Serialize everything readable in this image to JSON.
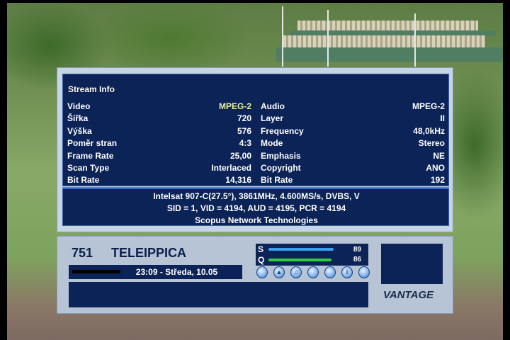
{
  "stream_info": {
    "title": "Stream Info",
    "video": [
      {
        "label": "Video",
        "value": "MPEG-2",
        "highlight": true
      },
      {
        "label": "Šířka",
        "value": "720"
      },
      {
        "label": "Výška",
        "value": "576"
      },
      {
        "label": "Poměr stran",
        "value": "4:3"
      },
      {
        "label": "Frame Rate",
        "value": "25,00"
      },
      {
        "label": "Scan Type",
        "value": "Interlaced"
      },
      {
        "label": "Bit Rate",
        "value": "14,316"
      }
    ],
    "audio": [
      {
        "label": "Audio",
        "value": "MPEG-2"
      },
      {
        "label": "Layer",
        "value": "II"
      },
      {
        "label": "Frequency",
        "value": "48,0kHz"
      },
      {
        "label": "Mode",
        "value": "Stereo"
      },
      {
        "label": "Emphasis",
        "value": "NE"
      },
      {
        "label": "Copyright",
        "value": "ANO"
      },
      {
        "label": "Bit Rate",
        "value": "192"
      }
    ],
    "transponder": "Intelsat 907-C(27.5°), 3861MHz, 4.600MS/s, DVBS, V",
    "pids": "SID = 1, VID = 4194, AUD = 4195, PCR = 4194",
    "provider": "Scopus Network Technologies"
  },
  "infobar": {
    "channel_number": "751",
    "channel_name": "TELEIPPICA",
    "datetime": "23:09 - Středa, 10.05",
    "signal": {
      "s_label": "S",
      "s_value": "89",
      "s_percent": 89,
      "q_label": "Q",
      "q_value": "86",
      "q_percent": 86
    },
    "colors": {
      "strength": "#3aa0e8",
      "quality": "#2fcf3a",
      "panel": "#0c2357"
    },
    "status_icons": [
      "hd-icon",
      "lock-icon",
      "music-icon",
      "subtitle-icon",
      "dolby-icon",
      "info-icon",
      "teletext-icon"
    ],
    "logo": "VANTAGE"
  }
}
